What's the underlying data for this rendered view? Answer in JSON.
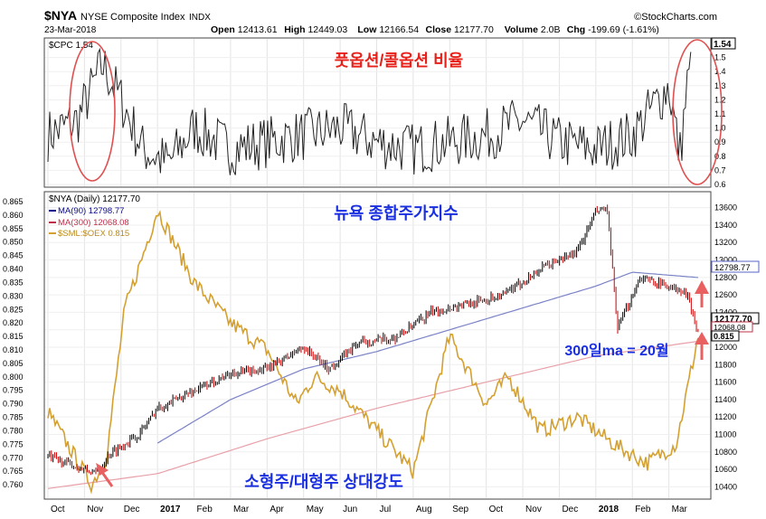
{
  "header": {
    "symbol": "$NYA",
    "name": "NYSE Composite Index",
    "exchange": "INDX",
    "date": "23-Mar-2018",
    "ohlc": [
      {
        "label": "Open",
        "value": "12413.61"
      },
      {
        "label": "High",
        "value": "12449.03"
      },
      {
        "label": "Low",
        "value": "12166.54"
      },
      {
        "label": "Close",
        "value": "12177.70"
      },
      {
        "label": "Volume",
        "value": "2.0B"
      },
      {
        "label": "Chg",
        "value": "-199.69 (-1.61%)"
      }
    ],
    "brand": "©StockCharts.com"
  },
  "annotations": {
    "pcr_title": "풋옵션/콜옵션 비율",
    "nya_title": "뉴욕 종합주가지수",
    "ma_note": "300일ma = 20월",
    "smloex_title": "소형주/대형주 상대강도"
  },
  "colors": {
    "price_up": "#000000",
    "price_down": "#cc0000",
    "ma90": "#7b83c7",
    "ma300": "#e8a0a8",
    "smloex": "#d4a030",
    "annotation_red": "#e8201a",
    "annotation_blue": "#1a2fe0",
    "circle": "#e05050"
  },
  "chart_data": [
    {
      "type": "line",
      "legend": "$CPC 1.54",
      "last_value": "1.54",
      "ylim": [
        0.6,
        1.6
      ],
      "y_ticks": [
        "1.5",
        "1.4",
        "1.3",
        "1.2",
        "1.1",
        "1.0",
        "0.9",
        "0.8",
        "0.7",
        "0.6"
      ],
      "x_range_months": [
        0,
        18
      ],
      "series_anchor": [
        [
          0.0,
          0.95
        ],
        [
          0.8,
          1.05
        ],
        [
          1.5,
          1.45
        ],
        [
          2.0,
          1.2
        ],
        [
          2.6,
          0.85
        ],
        [
          3.3,
          0.75
        ],
        [
          4.0,
          1.0
        ],
        [
          5.0,
          0.85
        ],
        [
          6.0,
          0.9
        ],
        [
          7.0,
          0.95
        ],
        [
          8.0,
          1.0
        ],
        [
          9.0,
          0.9
        ],
        [
          10.0,
          0.85
        ],
        [
          11.0,
          0.9
        ],
        [
          12.0,
          0.95
        ],
        [
          13.0,
          1.05
        ],
        [
          14.0,
          0.9
        ],
        [
          15.0,
          0.85
        ],
        [
          16.0,
          0.95
        ],
        [
          17.0,
          1.3
        ],
        [
          17.3,
          0.8
        ],
        [
          17.6,
          1.54
        ]
      ],
      "circles": [
        "Nov 2016",
        "Mar 2018"
      ]
    },
    {
      "type": "line",
      "series": [
        {
          "name": "$NYA (Daily) 12177.70",
          "last": "12177.70",
          "anchors": [
            [
              0,
              10750
            ],
            [
              1.3,
              10550
            ],
            [
              1.7,
              10780
            ],
            [
              2.5,
              11000
            ],
            [
              3.0,
              11300
            ],
            [
              4.0,
              11500
            ],
            [
              5.0,
              11700
            ],
            [
              6.0,
              11750
            ],
            [
              7.0,
              12000
            ],
            [
              7.7,
              11750
            ],
            [
              8.5,
              12050
            ],
            [
              9.5,
              12100
            ],
            [
              10.5,
              12400
            ],
            [
              11.5,
              12500
            ],
            [
              12.5,
              12600
            ],
            [
              13.5,
              12900
            ],
            [
              14.5,
              13100
            ],
            [
              15.0,
              13550
            ],
            [
              15.3,
              13600
            ],
            [
              15.6,
              12200
            ],
            [
              16.2,
              12800
            ],
            [
              17.0,
              12700
            ],
            [
              17.5,
              12600
            ],
            [
              17.8,
              12178
            ]
          ]
        },
        {
          "name": "MA(90) 12798.77",
          "last": "12798.77",
          "anchors": [
            [
              3.0,
              10900
            ],
            [
              5,
              11400
            ],
            [
              7,
              11750
            ],
            [
              9,
              11950
            ],
            [
              11,
              12200
            ],
            [
              13,
              12450
            ],
            [
              15,
              12700
            ],
            [
              16,
              12860
            ],
            [
              17.8,
              12799
            ]
          ]
        },
        {
          "name": "MA(300) 12068.08",
          "last": "12068.08",
          "anchors": [
            [
              0,
              10380
            ],
            [
              3,
              10550
            ],
            [
              6,
              10950
            ],
            [
              9,
              11300
            ],
            [
              12,
              11600
            ],
            [
              15,
              11900
            ],
            [
              17.8,
              12068
            ]
          ]
        }
      ],
      "ylim": [
        10300,
        13700
      ],
      "y_ticks": [
        "13600",
        "13400",
        "13200",
        "13000",
        "12800",
        "12600",
        "12400",
        "12200",
        "12000",
        "11800",
        "11600",
        "11400",
        "11200",
        "11000",
        "10800",
        "10600",
        "10400"
      ]
    },
    {
      "type": "line",
      "series": [
        {
          "name": "$SML:$OEX 0.815",
          "last": "0.815",
          "anchors": [
            [
              0,
              0.787
            ],
            [
              1.2,
              0.76
            ],
            [
              1.6,
              0.77
            ],
            [
              2.1,
              0.825
            ],
            [
              2.6,
              0.845
            ],
            [
              3.0,
              0.862
            ],
            [
              4.0,
              0.835
            ],
            [
              5.0,
              0.82
            ],
            [
              6.0,
              0.81
            ],
            [
              6.8,
              0.79
            ],
            [
              7.3,
              0.8
            ],
            [
              8.0,
              0.795
            ],
            [
              9.0,
              0.78
            ],
            [
              10.0,
              0.765
            ],
            [
              11.0,
              0.815
            ],
            [
              12.0,
              0.79
            ],
            [
              12.6,
              0.8
            ],
            [
              13.5,
              0.78
            ],
            [
              14.5,
              0.785
            ],
            [
              15.5,
              0.775
            ],
            [
              16.4,
              0.768
            ],
            [
              17.2,
              0.775
            ],
            [
              17.8,
              0.815
            ]
          ]
        }
      ],
      "ylim": [
        0.756,
        0.866
      ],
      "y_ticks": [
        "0.865",
        "0.860",
        "0.855",
        "0.850",
        "0.845",
        "0.840",
        "0.835",
        "0.830",
        "0.825",
        "0.820",
        "0.815",
        "0.810",
        "0.805",
        "0.800",
        "0.795",
        "0.790",
        "0.785",
        "0.780",
        "0.775",
        "0.770",
        "0.765",
        "0.760"
      ]
    }
  ],
  "x_axis": {
    "labels": [
      {
        "m": 0,
        "text": "Oct",
        "bold": false
      },
      {
        "m": 1,
        "text": "Nov",
        "bold": false
      },
      {
        "m": 2,
        "text": "Dec",
        "bold": false
      },
      {
        "m": 3,
        "text": "2017",
        "bold": true
      },
      {
        "m": 4,
        "text": "Feb",
        "bold": false
      },
      {
        "m": 5,
        "text": "Mar",
        "bold": false
      },
      {
        "m": 6,
        "text": "Apr",
        "bold": false
      },
      {
        "m": 7,
        "text": "May",
        "bold": false
      },
      {
        "m": 8,
        "text": "Jun",
        "bold": false
      },
      {
        "m": 9,
        "text": "Jul",
        "bold": false
      },
      {
        "m": 10,
        "text": "Aug",
        "bold": false
      },
      {
        "m": 11,
        "text": "Sep",
        "bold": false
      },
      {
        "m": 12,
        "text": "Oct",
        "bold": false
      },
      {
        "m": 13,
        "text": "Nov",
        "bold": false
      },
      {
        "m": 14,
        "text": "Dec",
        "bold": false
      },
      {
        "m": 15,
        "text": "2018",
        "bold": true
      },
      {
        "m": 16,
        "text": "Feb",
        "bold": false
      },
      {
        "m": 17,
        "text": "Mar",
        "bold": false
      }
    ]
  }
}
